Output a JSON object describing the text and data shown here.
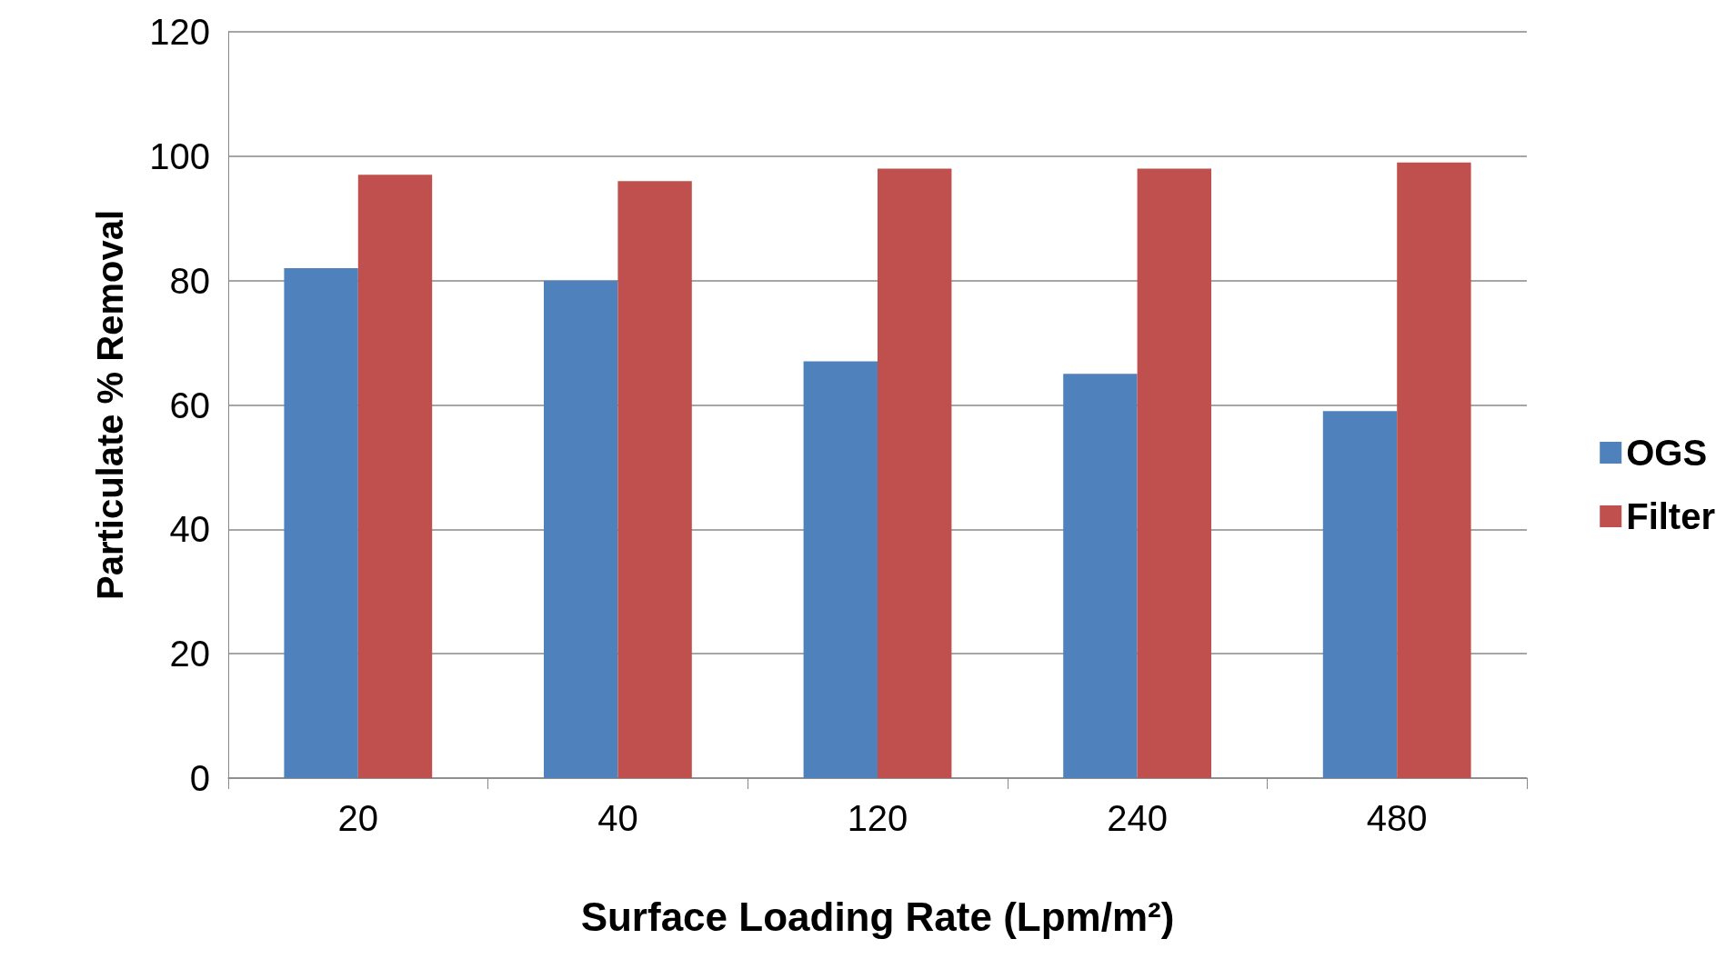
{
  "chart_data": {
    "type": "bar",
    "xlabel": "Surface Loading Rate (Lpm/m²)",
    "ylabel": "Particulate % Removal",
    "categories": [
      "20",
      "40",
      "120",
      "240",
      "480"
    ],
    "series": [
      {
        "name": "OGS",
        "color": "#4f81bd",
        "values": [
          82,
          80,
          67,
          65,
          59
        ]
      },
      {
        "name": "Filter",
        "color": "#c0504d",
        "values": [
          97,
          96,
          98,
          98,
          99
        ]
      }
    ],
    "ylim": [
      0,
      120
    ],
    "yticks": [
      0,
      20,
      40,
      60,
      80,
      100,
      120
    ],
    "grid": "y",
    "legend": "right"
  }
}
